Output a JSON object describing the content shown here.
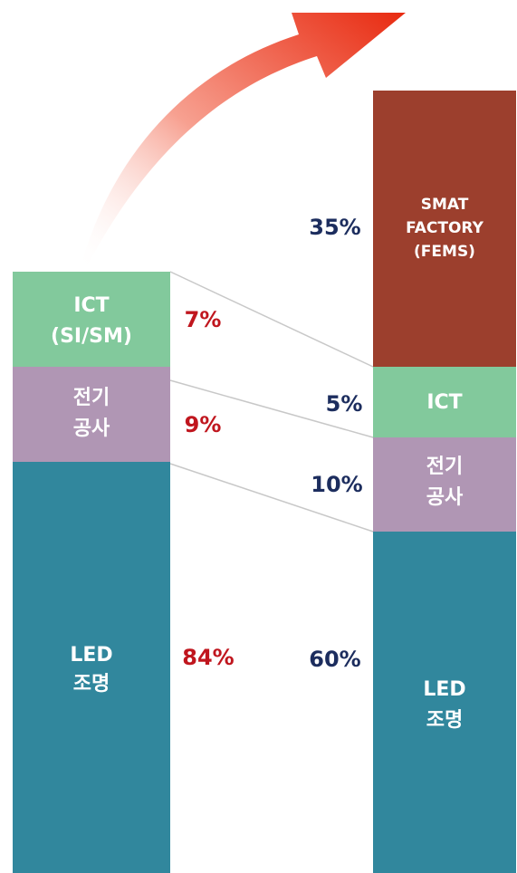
{
  "left": {
    "segments": [
      {
        "label": [
          "ICT",
          "(SI/SM)"
        ],
        "percent": "7%"
      },
      {
        "label": [
          "전기",
          "공사"
        ],
        "percent": "9%"
      },
      {
        "label": [
          "LED",
          "조명"
        ],
        "percent": "84%"
      }
    ]
  },
  "right": {
    "segments": [
      {
        "label": [
          "SMAT",
          "FACTORY",
          "(FEMS)"
        ],
        "percent": "35%"
      },
      {
        "label": [
          "ICT"
        ],
        "percent": "5%"
      },
      {
        "label": [
          "전기",
          "공사"
        ],
        "percent": "10%"
      },
      {
        "label": [
          "LED",
          "조명"
        ],
        "percent": "60%"
      }
    ]
  }
}
